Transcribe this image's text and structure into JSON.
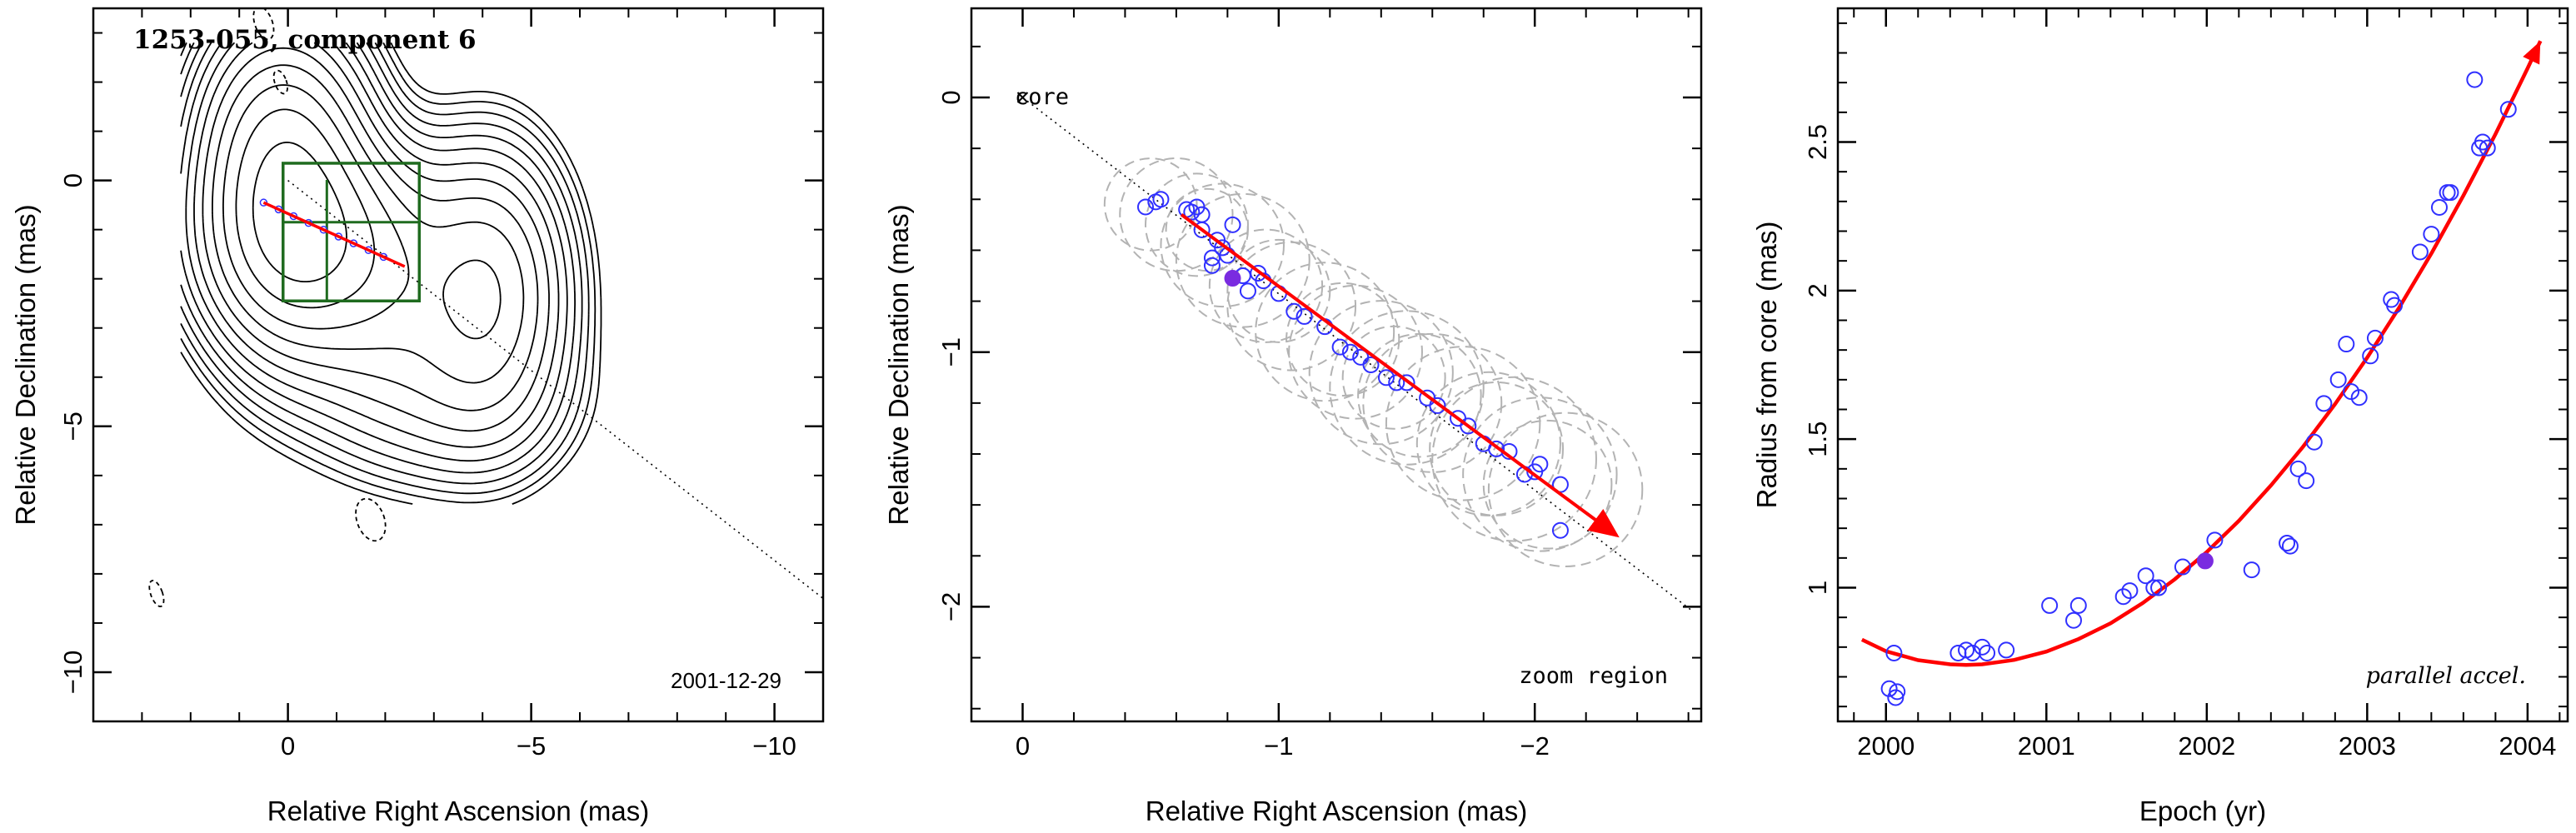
{
  "chart_data": [
    {
      "type": "contour",
      "title": "1253-055, component 6",
      "annotation": "2001-12-29",
      "xlabel": "Relative Right Ascension (mas)",
      "ylabel": "Relative Declination (mas)",
      "xlim": [
        4,
        -11
      ],
      "ylim": [
        -11,
        3.5
      ],
      "x_ticks": [
        0,
        -5,
        -10
      ],
      "y_ticks": [
        0,
        -5,
        -10
      ],
      "contour_color": "#000000",
      "zoom_box_color": "#1f6b1f",
      "arrow_color": "#ff0000",
      "point_color": "#3030ff",
      "zoom_box": {
        "x_range": [
          0.1,
          -2.7
        ],
        "y_range": [
          0.35,
          -2.45
        ]
      },
      "component_track": {
        "start": [
          0.5,
          -0.45
        ],
        "end": [
          -2.4,
          -1.75
        ]
      }
    },
    {
      "type": "scatter",
      "title": "",
      "annotation": "zoom region",
      "core_label": "core",
      "xlabel": "Relative Right Ascension (mas)",
      "ylabel": "Relative Declination (mas)",
      "xlim": [
        0.2,
        -2.65
      ],
      "ylim": [
        -2.45,
        0.35
      ],
      "x_ticks": [
        0,
        -1,
        -2
      ],
      "y_ticks": [
        0,
        -1,
        -2
      ],
      "points": [
        [
          -0.48,
          -0.43
        ],
        [
          -0.52,
          -0.41
        ],
        [
          -0.54,
          -0.4
        ],
        [
          -0.64,
          -0.44
        ],
        [
          -0.66,
          -0.45
        ],
        [
          -0.68,
          -0.43
        ],
        [
          -0.7,
          -0.46
        ],
        [
          -0.7,
          -0.52
        ],
        [
          -0.76,
          -0.56
        ],
        [
          -0.78,
          -0.59
        ],
        [
          -0.74,
          -0.63
        ],
        [
          -0.74,
          -0.66
        ],
        [
          -0.8,
          -0.62
        ],
        [
          -0.82,
          -0.5
        ],
        [
          -0.86,
          -0.7
        ],
        [
          -0.88,
          -0.76
        ],
        [
          -0.92,
          -0.69
        ],
        [
          -0.94,
          -0.72
        ],
        [
          -1.0,
          -0.77
        ],
        [
          -1.06,
          -0.84
        ],
        [
          -1.1,
          -0.86
        ],
        [
          -1.18,
          -0.9
        ],
        [
          -1.24,
          -0.98
        ],
        [
          -1.28,
          -1.0
        ],
        [
          -1.32,
          -1.02
        ],
        [
          -1.36,
          -1.05
        ],
        [
          -1.42,
          -1.1
        ],
        [
          -1.46,
          -1.12
        ],
        [
          -1.5,
          -1.12
        ],
        [
          -1.58,
          -1.18
        ],
        [
          -1.62,
          -1.21
        ],
        [
          -1.7,
          -1.26
        ],
        [
          -1.74,
          -1.29
        ],
        [
          -1.8,
          -1.36
        ],
        [
          -1.85,
          -1.38
        ],
        [
          -1.9,
          -1.39
        ],
        [
          -1.96,
          -1.48
        ],
        [
          -2.0,
          -1.47
        ],
        [
          -2.02,
          -1.44
        ],
        [
          -2.1,
          -1.52
        ],
        [
          -2.1,
          -1.7
        ]
      ],
      "highlight_point": [
        -0.82,
        -0.71
      ],
      "arrow": {
        "start": [
          -0.62,
          -0.46
        ],
        "end": [
          -2.32,
          -1.72
        ]
      },
      "core_line": {
        "start": [
          0.0,
          0.0
        ],
        "end": [
          -2.62,
          -2.02
        ]
      },
      "circles": [
        [
          -0.5,
          -0.42,
          0.18
        ],
        [
          -0.6,
          -0.46,
          0.22
        ],
        [
          -0.68,
          -0.5,
          0.2
        ],
        [
          -0.78,
          -0.58,
          0.24
        ],
        [
          -0.86,
          -0.64,
          0.26
        ],
        [
          -0.95,
          -0.74,
          0.22
        ],
        [
          -1.05,
          -0.82,
          0.25
        ],
        [
          -1.18,
          -0.92,
          0.27
        ],
        [
          -1.3,
          -1.0,
          0.26
        ],
        [
          -1.4,
          -1.08,
          0.28
        ],
        [
          -1.5,
          -1.14,
          0.3
        ],
        [
          -1.6,
          -1.2,
          0.27
        ],
        [
          -1.72,
          -1.28,
          0.3
        ],
        [
          -1.82,
          -1.36,
          0.28
        ],
        [
          -1.92,
          -1.42,
          0.32
        ],
        [
          -2.02,
          -1.48,
          0.3
        ],
        [
          -2.12,
          -1.54,
          0.3
        ],
        [
          -1.0,
          -0.76,
          0.2
        ],
        [
          -1.25,
          -0.95,
          0.22
        ],
        [
          -1.55,
          -1.17,
          0.24
        ],
        [
          -1.85,
          -1.38,
          0.26
        ],
        [
          -2.05,
          -1.52,
          0.25
        ],
        [
          -0.72,
          -0.52,
          0.16
        ],
        [
          -1.45,
          -1.1,
          0.2
        ]
      ],
      "circle_color": "#b3b3b3",
      "point_color": "#3030ff",
      "highlight_color": "#7a2be0",
      "arrow_color": "#ff0000"
    },
    {
      "type": "scatter",
      "title": "",
      "annotation": "parallel accel.",
      "xlabel": "Epoch (yr)",
      "ylabel": "Radius from core (mas)",
      "xlim": [
        1999.7,
        2004.25
      ],
      "ylim": [
        0.55,
        2.95
      ],
      "x_ticks": [
        2000,
        2001,
        2002,
        2003,
        2004
      ],
      "y_ticks": [
        1,
        1.5,
        2,
        2.5
      ],
      "points": [
        [
          2000.02,
          0.66
        ],
        [
          2000.06,
          0.63
        ],
        [
          2000.07,
          0.65
        ],
        [
          2000.05,
          0.78
        ],
        [
          2000.45,
          0.78
        ],
        [
          2000.5,
          0.79
        ],
        [
          2000.54,
          0.78
        ],
        [
          2000.6,
          0.8
        ],
        [
          2000.63,
          0.78
        ],
        [
          2000.75,
          0.79
        ],
        [
          2001.02,
          0.94
        ],
        [
          2001.17,
          0.89
        ],
        [
          2001.2,
          0.94
        ],
        [
          2001.48,
          0.97
        ],
        [
          2001.52,
          0.99
        ],
        [
          2001.62,
          1.04
        ],
        [
          2001.67,
          1.0
        ],
        [
          2001.7,
          1.0
        ],
        [
          2001.85,
          1.07
        ],
        [
          2002.05,
          1.16
        ],
        [
          2002.28,
          1.06
        ],
        [
          2002.5,
          1.15
        ],
        [
          2002.52,
          1.14
        ],
        [
          2002.57,
          1.4
        ],
        [
          2002.62,
          1.36
        ],
        [
          2002.67,
          1.49
        ],
        [
          2002.73,
          1.62
        ],
        [
          2002.82,
          1.7
        ],
        [
          2002.87,
          1.82
        ],
        [
          2002.9,
          1.66
        ],
        [
          2002.95,
          1.64
        ],
        [
          2003.02,
          1.78
        ],
        [
          2003.05,
          1.84
        ],
        [
          2003.15,
          1.97
        ],
        [
          2003.17,
          1.95
        ],
        [
          2003.33,
          2.13
        ],
        [
          2003.4,
          2.19
        ],
        [
          2003.45,
          2.28
        ],
        [
          2003.5,
          2.33
        ],
        [
          2003.52,
          2.33
        ],
        [
          2003.67,
          2.71
        ],
        [
          2003.7,
          2.48
        ],
        [
          2003.72,
          2.5
        ],
        [
          2003.75,
          2.48
        ],
        [
          2003.88,
          2.61
        ]
      ],
      "highlight_point": [
        2001.99,
        1.09
      ],
      "fit_curve": [
        [
          1999.85,
          0.825
        ],
        [
          2000.0,
          0.786
        ],
        [
          2000.2,
          0.756
        ],
        [
          2000.4,
          0.742
        ],
        [
          2000.5,
          0.74
        ],
        [
          2000.6,
          0.742
        ],
        [
          2000.8,
          0.757
        ],
        [
          2001.0,
          0.785
        ],
        [
          2001.2,
          0.827
        ],
        [
          2001.4,
          0.88
        ],
        [
          2001.6,
          0.948
        ],
        [
          2001.8,
          1.028
        ],
        [
          2002.0,
          1.12
        ],
        [
          2002.2,
          1.225
        ],
        [
          2002.4,
          1.344
        ],
        [
          2002.6,
          1.474
        ],
        [
          2002.8,
          1.618
        ],
        [
          2003.0,
          1.774
        ],
        [
          2003.2,
          1.943
        ],
        [
          2003.4,
          2.125
        ],
        [
          2003.6,
          2.32
        ],
        [
          2003.8,
          2.527
        ],
        [
          2004.0,
          2.748
        ],
        [
          2004.08,
          2.84
        ]
      ],
      "point_color": "#3030ff",
      "highlight_color": "#7a2be0",
      "curve_color": "#ff0000"
    }
  ]
}
